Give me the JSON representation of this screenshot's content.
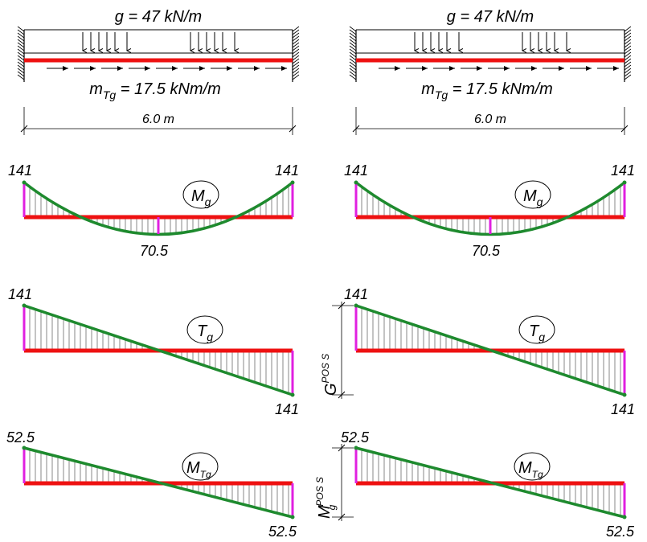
{
  "load_top": "g = 47 kN/m",
  "torque": {
    "m": "m",
    "sub": "Tg",
    "rest": " = 17.5 kNm/m"
  },
  "span": "6.0 m",
  "moment": {
    "left": "141",
    "right": "141",
    "mid": "70.5",
    "tag_main": "M",
    "tag_sub": "g"
  },
  "shear": {
    "top": "141",
    "bottom": "141",
    "tag_main": "T",
    "tag_sub": "g"
  },
  "torsion": {
    "top": "52.5",
    "bottom": "52.5",
    "tag_main": "M",
    "tag_sub": "Tg"
  },
  "side_shear": {
    "main": "G",
    "sup": "POS S"
  },
  "side_torsion": {
    "main": "M",
    "sub": "g",
    "sup": "POS S"
  },
  "colors": {
    "beam": "#ee1111",
    "diagram": "#1e8a2e",
    "ordinate": "#e020e0",
    "hatch": "#555555",
    "text": "#000000"
  }
}
